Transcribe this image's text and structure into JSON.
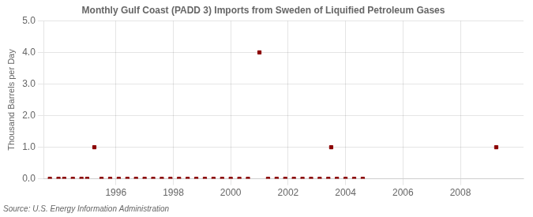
{
  "chart_data": {
    "type": "scatter",
    "title": "Monthly Gulf Coast (PADD 3) Imports from Sweden of Liquified Petroleum Gases",
    "ylabel": "Thousand Barrels per Day",
    "annotation": "Source: U.S. Energy Information Administration",
    "x": [
      1995.25,
      2001.0,
      2003.5,
      2009.25,
      1993.7,
      1994.0,
      1994.2,
      1994.5,
      1994.8,
      1995.0,
      1995.5,
      1995.8,
      1996.1,
      1996.4,
      1996.7,
      1997.0,
      1997.3,
      1997.6,
      1997.9,
      1998.2,
      1998.5,
      1998.8,
      1999.1,
      1999.4,
      1999.7,
      2000.0,
      2000.3,
      2000.6,
      2001.3,
      2001.6,
      2001.9,
      2002.2,
      2002.5,
      2002.8,
      2003.1,
      2003.4,
      2003.7,
      2004.0,
      2004.3,
      2004.6
    ],
    "values": [
      1.0,
      4.0,
      1.0,
      1.0,
      0.0,
      0.0,
      0.0,
      0.0,
      0.0,
      0.0,
      0.0,
      0.0,
      0.0,
      0.0,
      0.0,
      0.0,
      0.0,
      0.0,
      0.0,
      0.0,
      0.0,
      0.0,
      0.0,
      0.0,
      0.0,
      0.0,
      0.0,
      0.0,
      0.0,
      0.0,
      0.0,
      0.0,
      0.0,
      0.0,
      0.0,
      0.0,
      0.0,
      0.0,
      0.0,
      0.0
    ],
    "color": "#8b0000",
    "marker": "square",
    "xlim": [
      1993.5,
      2010.2
    ],
    "xticks": [
      1996,
      1998,
      2000,
      2002,
      2004,
      2006,
      2008
    ],
    "ylim": [
      0.0,
      5.0
    ],
    "yticks": [
      {
        "value": 0.0,
        "label": "0.0"
      },
      {
        "value": 1.0,
        "label": "1.0"
      },
      {
        "value": 2.0,
        "label": "2.0"
      },
      {
        "value": 3.0,
        "label": "3.0"
      },
      {
        "value": 4.0,
        "label": "4.0"
      },
      {
        "value": 5.0,
        "label": "5.0"
      }
    ],
    "grid": true
  }
}
